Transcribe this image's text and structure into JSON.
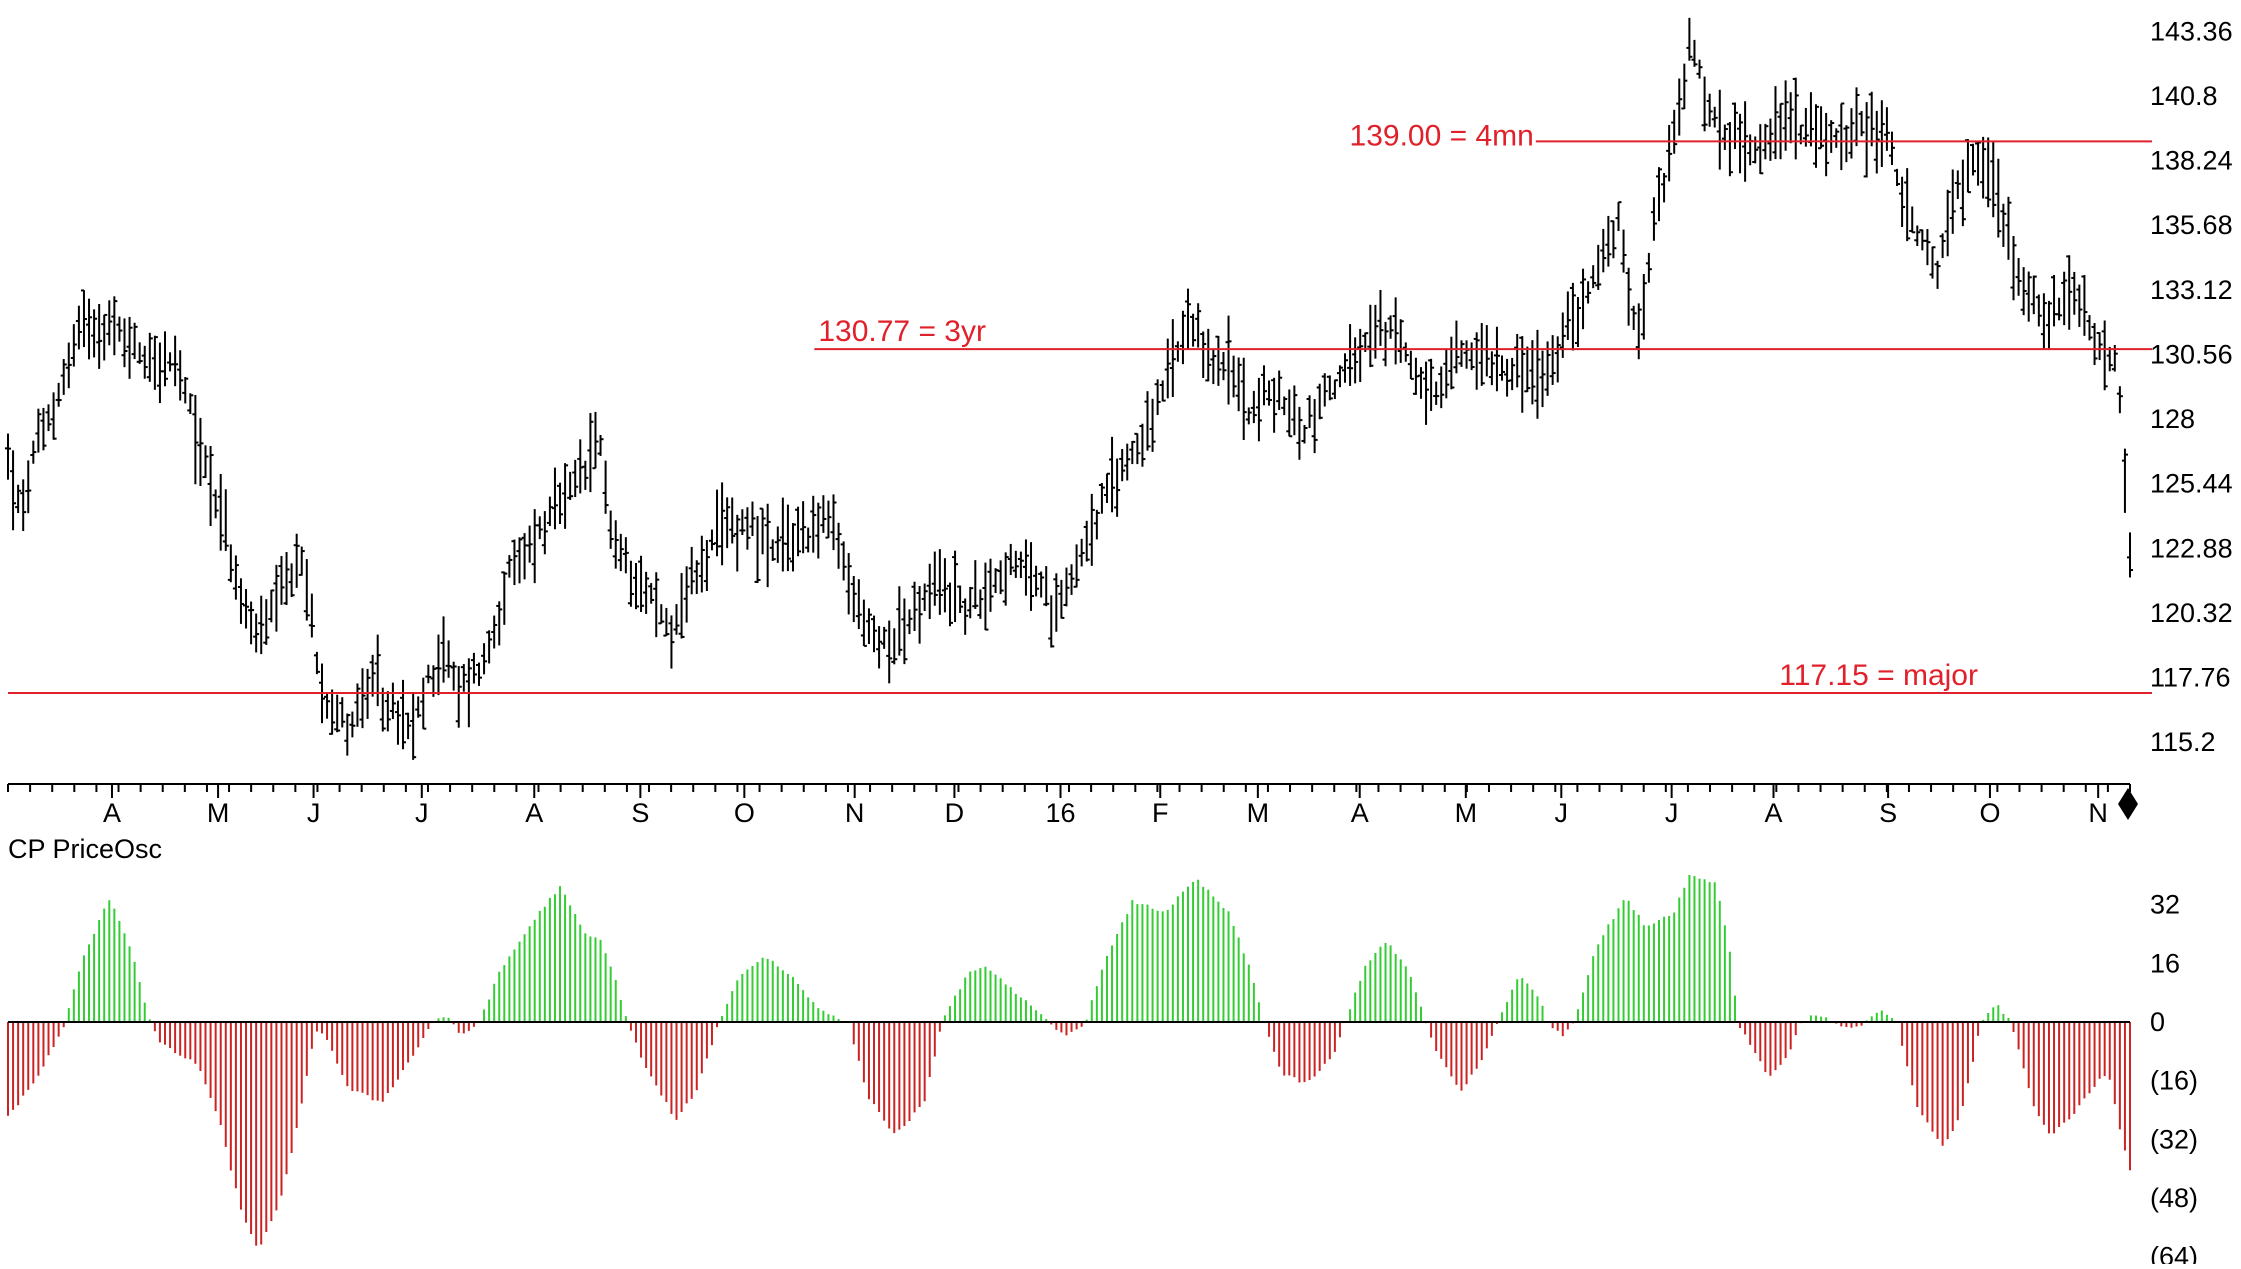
{
  "chart_data": [
    {
      "type": "ohlc",
      "ylim": [
        113.9,
        144.6
      ],
      "y_ticks": [
        {
          "value": 143.36,
          "label": "143.36"
        },
        {
          "value": 140.8,
          "label": "140.8"
        },
        {
          "value": 138.24,
          "label": "138.24"
        },
        {
          "value": 135.68,
          "label": "135.68"
        },
        {
          "value": 133.12,
          "label": "133.12"
        },
        {
          "value": 130.56,
          "label": "130.56"
        },
        {
          "value": 128,
          "label": "128"
        },
        {
          "value": 125.44,
          "label": "125.44"
        },
        {
          "value": 122.88,
          "label": "122.88"
        },
        {
          "value": 120.32,
          "label": "120.32"
        },
        {
          "value": 117.76,
          "label": "117.76"
        },
        {
          "value": 115.2,
          "label": "115.2"
        }
      ],
      "x_tick_labels": [
        {
          "label": "A",
          "t": 0.049
        },
        {
          "label": "M",
          "t": 0.099
        },
        {
          "label": "J",
          "t": 0.144
        },
        {
          "label": "J",
          "t": 0.195
        },
        {
          "label": "A",
          "t": 0.248
        },
        {
          "label": "S",
          "t": 0.298
        },
        {
          "label": "O",
          "t": 0.347
        },
        {
          "label": "N",
          "t": 0.399
        },
        {
          "label": "D",
          "t": 0.446
        },
        {
          "label": "16",
          "t": 0.496
        },
        {
          "label": "F",
          "t": 0.543
        },
        {
          "label": "M",
          "t": 0.589
        },
        {
          "label": "A",
          "t": 0.637
        },
        {
          "label": "M",
          "t": 0.687
        },
        {
          "label": "J",
          "t": 0.732
        },
        {
          "label": "J",
          "t": 0.784
        },
        {
          "label": "A",
          "t": 0.832
        },
        {
          "label": "S",
          "t": 0.886
        },
        {
          "label": "O",
          "t": 0.934
        },
        {
          "label": "N",
          "t": 0.985
        }
      ],
      "horizontal_lines": [
        {
          "value": 139.0,
          "label": "139.00 = 4mn",
          "from": 0.72,
          "label_side": "left"
        },
        {
          "value": 130.77,
          "label": "130.77 = 3yr",
          "from": 0.38,
          "label_side": "right"
        },
        {
          "value": 117.15,
          "label": "117.15 = major",
          "from": 0.0,
          "label_side": "end"
        }
      ],
      "bar_count": 420,
      "price_path": [
        [
          0.0,
          126.5
        ],
        [
          0.006,
          124.0
        ],
        [
          0.012,
          126.5
        ],
        [
          0.022,
          128.5
        ],
        [
          0.035,
          132.0
        ],
        [
          0.05,
          131.5
        ],
        [
          0.065,
          130.5
        ],
        [
          0.08,
          130.0
        ],
        [
          0.09,
          127.0
        ],
        [
          0.1,
          124.5
        ],
        [
          0.11,
          120.5
        ],
        [
          0.12,
          119.5
        ],
        [
          0.138,
          122.5
        ],
        [
          0.148,
          117.5
        ],
        [
          0.16,
          115.8
        ],
        [
          0.172,
          117.5
        ],
        [
          0.18,
          116.5
        ],
        [
          0.19,
          115.5
        ],
        [
          0.204,
          119.0
        ],
        [
          0.212,
          117.2
        ],
        [
          0.225,
          118.5
        ],
        [
          0.235,
          121.5
        ],
        [
          0.25,
          123.5
        ],
        [
          0.265,
          125.0
        ],
        [
          0.28,
          127.0
        ],
        [
          0.285,
          123.0
        ],
        [
          0.3,
          121.5
        ],
        [
          0.312,
          119.5
        ],
        [
          0.322,
          121.5
        ],
        [
          0.336,
          123.5
        ],
        [
          0.35,
          124.0
        ],
        [
          0.36,
          122.5
        ],
        [
          0.372,
          123.5
        ],
        [
          0.387,
          124.0
        ],
        [
          0.398,
          121.0
        ],
        [
          0.41,
          119.0
        ],
        [
          0.425,
          120.0
        ],
        [
          0.44,
          121.5
        ],
        [
          0.452,
          120.5
        ],
        [
          0.468,
          122.0
        ],
        [
          0.482,
          122.0
        ],
        [
          0.492,
          120.5
        ],
        [
          0.502,
          122.0
        ],
        [
          0.515,
          124.5
        ],
        [
          0.528,
          126.5
        ],
        [
          0.54,
          128.0
        ],
        [
          0.548,
          130.0
        ],
        [
          0.556,
          131.5
        ],
        [
          0.566,
          130.5
        ],
        [
          0.575,
          130.0
        ],
        [
          0.585,
          128.5
        ],
        [
          0.598,
          129.0
        ],
        [
          0.61,
          127.5
        ],
        [
          0.62,
          129.0
        ],
        [
          0.632,
          130.0
        ],
        [
          0.645,
          131.5
        ],
        [
          0.658,
          131.0
        ],
        [
          0.672,
          128.5
        ],
        [
          0.682,
          130.5
        ],
        [
          0.698,
          130.5
        ],
        [
          0.712,
          130.0
        ],
        [
          0.725,
          129.5
        ],
        [
          0.737,
          132.0
        ],
        [
          0.75,
          134.0
        ],
        [
          0.758,
          136.0
        ],
        [
          0.764,
          133.0
        ],
        [
          0.77,
          131.5
        ],
        [
          0.775,
          136.0
        ],
        [
          0.785,
          139.0
        ],
        [
          0.793,
          143.0
        ],
        [
          0.8,
          140.5
        ],
        [
          0.81,
          139.0
        ],
        [
          0.825,
          139.0
        ],
        [
          0.84,
          140.0
        ],
        [
          0.855,
          139.0
        ],
        [
          0.87,
          139.5
        ],
        [
          0.885,
          139.5
        ],
        [
          0.892,
          137.0
        ],
        [
          0.9,
          135.0
        ],
        [
          0.91,
          134.0
        ],
        [
          0.918,
          137.0
        ],
        [
          0.928,
          138.5
        ],
        [
          0.935,
          137.5
        ],
        [
          0.945,
          134.5
        ],
        [
          0.955,
          132.5
        ],
        [
          0.965,
          132.0
        ],
        [
          0.975,
          133.0
        ],
        [
          0.985,
          130.5
        ],
        [
          0.993,
          130.5
        ],
        [
          0.997,
          126.5
        ],
        [
          1.0,
          122.5
        ]
      ],
      "end_marker": "diamond"
    },
    {
      "type": "bar",
      "title": "CP PriceOsc",
      "ylim": [
        -66,
        42
      ],
      "y_ticks": [
        {
          "value": 32,
          "label": "32"
        },
        {
          "value": 16,
          "label": "16"
        },
        {
          "value": 0,
          "label": "0"
        },
        {
          "value": -16,
          "label": "(16)"
        },
        {
          "value": -32,
          "label": "(32)"
        },
        {
          "value": -48,
          "label": "(48)"
        },
        {
          "value": -64,
          "label": "(64)"
        }
      ],
      "positive_color": "#33cc33",
      "negative_color": "#cc2222",
      "bar_count": 420,
      "osc_path": [
        [
          0.0,
          -26
        ],
        [
          0.014,
          -15
        ],
        [
          0.024,
          -4
        ],
        [
          0.027,
          0
        ],
        [
          0.035,
          17
        ],
        [
          0.048,
          34
        ],
        [
          0.058,
          20
        ],
        [
          0.067,
          0
        ],
        [
          0.072,
          -6
        ],
        [
          0.09,
          -12
        ],
        [
          0.1,
          -28
        ],
        [
          0.11,
          -52
        ],
        [
          0.118,
          -62
        ],
        [
          0.128,
          -50
        ],
        [
          0.138,
          -24
        ],
        [
          0.145,
          -2
        ],
        [
          0.15,
          -4
        ],
        [
          0.16,
          -18
        ],
        [
          0.176,
          -22
        ],
        [
          0.19,
          -10
        ],
        [
          0.2,
          0
        ],
        [
          0.207,
          2
        ],
        [
          0.213,
          -4
        ],
        [
          0.218,
          -2
        ],
        [
          0.222,
          0
        ],
        [
          0.232,
          14
        ],
        [
          0.248,
          28
        ],
        [
          0.26,
          37
        ],
        [
          0.272,
          24
        ],
        [
          0.28,
          22
        ],
        [
          0.287,
          10
        ],
        [
          0.292,
          0
        ],
        [
          0.3,
          -12
        ],
        [
          0.315,
          -27
        ],
        [
          0.325,
          -18
        ],
        [
          0.335,
          0
        ],
        [
          0.345,
          13
        ],
        [
          0.357,
          18
        ],
        [
          0.37,
          12
        ],
        [
          0.38,
          5
        ],
        [
          0.39,
          1
        ],
        [
          0.396,
          0
        ],
        [
          0.405,
          -20
        ],
        [
          0.418,
          -31
        ],
        [
          0.432,
          -22
        ],
        [
          0.44,
          0
        ],
        [
          0.452,
          13
        ],
        [
          0.462,
          15
        ],
        [
          0.475,
          8
        ],
        [
          0.49,
          0
        ],
        [
          0.498,
          -4
        ],
        [
          0.508,
          0
        ],
        [
          0.515,
          14
        ],
        [
          0.53,
          33
        ],
        [
          0.545,
          30
        ],
        [
          0.56,
          39
        ],
        [
          0.575,
          30
        ],
        [
          0.585,
          15
        ],
        [
          0.592,
          0
        ],
        [
          0.6,
          -14
        ],
        [
          0.612,
          -17
        ],
        [
          0.625,
          -9
        ],
        [
          0.63,
          0
        ],
        [
          0.64,
          16
        ],
        [
          0.65,
          22
        ],
        [
          0.66,
          14
        ],
        [
          0.668,
          0
        ],
        [
          0.673,
          -8
        ],
        [
          0.685,
          -19
        ],
        [
          0.695,
          -10
        ],
        [
          0.702,
          0
        ],
        [
          0.712,
          13
        ],
        [
          0.722,
          6
        ],
        [
          0.726,
          0
        ],
        [
          0.732,
          -4
        ],
        [
          0.738,
          0
        ],
        [
          0.748,
          20
        ],
        [
          0.762,
          34
        ],
        [
          0.772,
          26
        ],
        [
          0.785,
          30
        ],
        [
          0.792,
          40
        ],
        [
          0.805,
          38
        ],
        [
          0.812,
          18
        ],
        [
          0.815,
          0
        ],
        [
          0.83,
          -15
        ],
        [
          0.838,
          -10
        ],
        [
          0.845,
          0
        ],
        [
          0.852,
          2
        ],
        [
          0.86,
          0
        ],
        [
          0.87,
          -2
        ],
        [
          0.875,
          0
        ],
        [
          0.883,
          3
        ],
        [
          0.89,
          0
        ],
        [
          0.9,
          -24
        ],
        [
          0.912,
          -34
        ],
        [
          0.92,
          -26
        ],
        [
          0.927,
          -8
        ],
        [
          0.93,
          0
        ],
        [
          0.937,
          5
        ],
        [
          0.944,
          0
        ],
        [
          0.955,
          -24
        ],
        [
          0.963,
          -31
        ],
        [
          0.975,
          -24
        ],
        [
          0.985,
          -16
        ],
        [
          0.99,
          -14
        ],
        [
          0.997,
          -34
        ],
        [
          1.0,
          -40
        ]
      ]
    }
  ]
}
